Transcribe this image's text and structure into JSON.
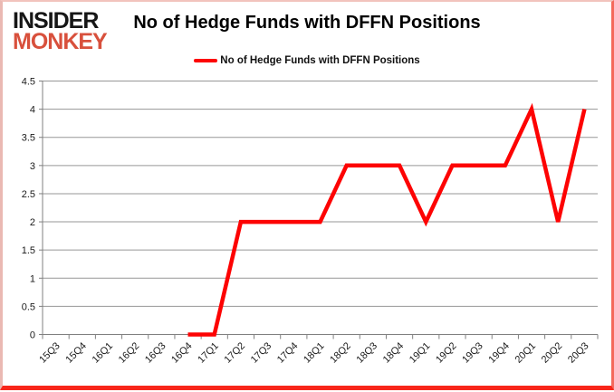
{
  "logo": {
    "line1": "INSIDER",
    "line2": "MONKEY"
  },
  "title": "No of Hedge Funds with DFFN Positions",
  "legend": {
    "label": "No of Hedge Funds with DFFN Positions"
  },
  "chart_data": {
    "type": "line",
    "title": "No of Hedge Funds with DFFN Positions",
    "categories": [
      "15Q3",
      "15Q4",
      "16Q1",
      "16Q2",
      "16Q3",
      "16Q4",
      "17Q1",
      "17Q2",
      "17Q3",
      "17Q4",
      "18Q1",
      "18Q2",
      "18Q3",
      "18Q4",
      "19Q1",
      "19Q2",
      "19Q3",
      "19Q4",
      "20Q1",
      "20Q2",
      "20Q3"
    ],
    "series": [
      {
        "name": "No of Hedge Funds with DFFN Positions",
        "values": [
          null,
          null,
          null,
          null,
          null,
          0,
          0,
          2,
          2,
          2,
          2,
          3,
          3,
          3,
          2,
          3,
          3,
          3,
          4,
          2,
          4
        ]
      }
    ],
    "xlabel": "",
    "ylabel": "",
    "ylim": [
      0,
      4.5
    ],
    "ytick_step": 0.5,
    "yticks": [
      0,
      0.5,
      1,
      1.5,
      2,
      2.5,
      3,
      3.5,
      4,
      4.5
    ],
    "grid": true,
    "legend_position": "top",
    "colors": {
      "line": "#fd0303",
      "grid": "#979797",
      "axis": "#808080",
      "tick_label": "#1a1a1a",
      "logo_black": "#161616",
      "logo_red": "#d8503c",
      "frame_red": "#f8261a"
    }
  }
}
